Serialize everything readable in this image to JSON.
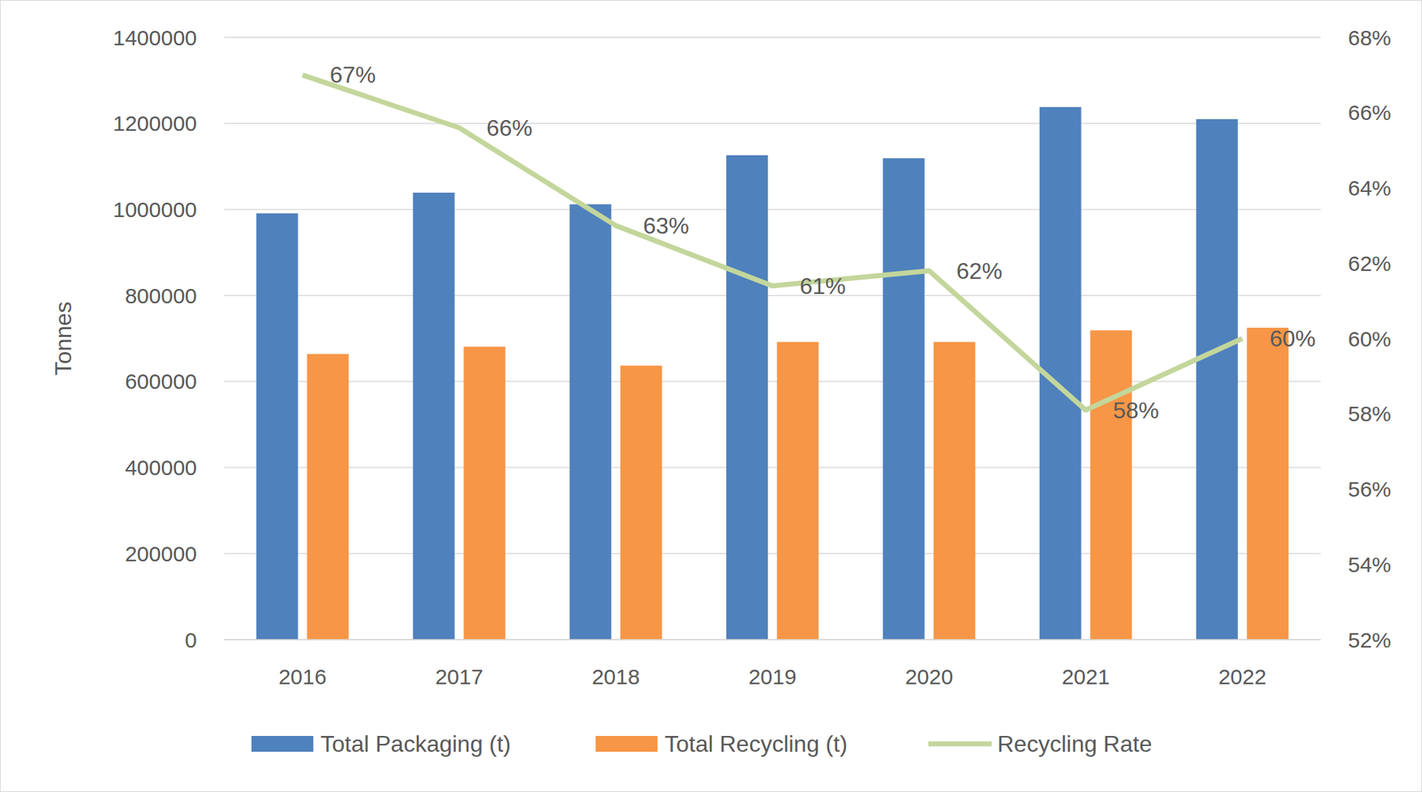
{
  "chart_data": {
    "type": "bar",
    "y_label": "Tonnes",
    "categories": [
      "2016",
      "2017",
      "2018",
      "2019",
      "2020",
      "2021",
      "2022"
    ],
    "series": [
      {
        "name": "Total Packaging (t)",
        "type": "bar",
        "color": "#4f81bd",
        "values": [
          991000,
          1039000,
          1012000,
          1126000,
          1119000,
          1238000,
          1210000
        ]
      },
      {
        "name": "Total Recycling (t)",
        "type": "bar",
        "color": "#f79646",
        "values": [
          664000,
          681000,
          637000,
          692000,
          692000,
          719000,
          725000
        ]
      },
      {
        "name": "Recycling Rate",
        "type": "line",
        "axis": "y2",
        "color": "#c3d69b",
        "data_labels": true,
        "values": [
          67,
          65.6,
          63,
          61.4,
          61.8,
          58.1,
          60
        ],
        "value_labels": [
          "67%",
          "66%",
          "63%",
          "61%",
          "62%",
          "58%",
          "60%"
        ]
      }
    ],
    "ylim": [
      0,
      1400000
    ],
    "yticks": [
      0,
      200000,
      400000,
      600000,
      800000,
      1000000,
      1200000,
      1400000
    ],
    "y2lim": [
      52,
      68
    ],
    "y2ticks": [
      {
        "value": 52,
        "label": "52%"
      },
      {
        "value": 54,
        "label": "54%"
      },
      {
        "value": 56,
        "label": "56%"
      },
      {
        "value": 58,
        "label": "58%"
      },
      {
        "value": 60,
        "label": "60%"
      },
      {
        "value": 62,
        "label": "62%"
      },
      {
        "value": 64,
        "label": "64%"
      },
      {
        "value": 66,
        "label": "66%"
      },
      {
        "value": 68,
        "label": "68%"
      }
    ],
    "grid": true,
    "legend": "bottom"
  }
}
